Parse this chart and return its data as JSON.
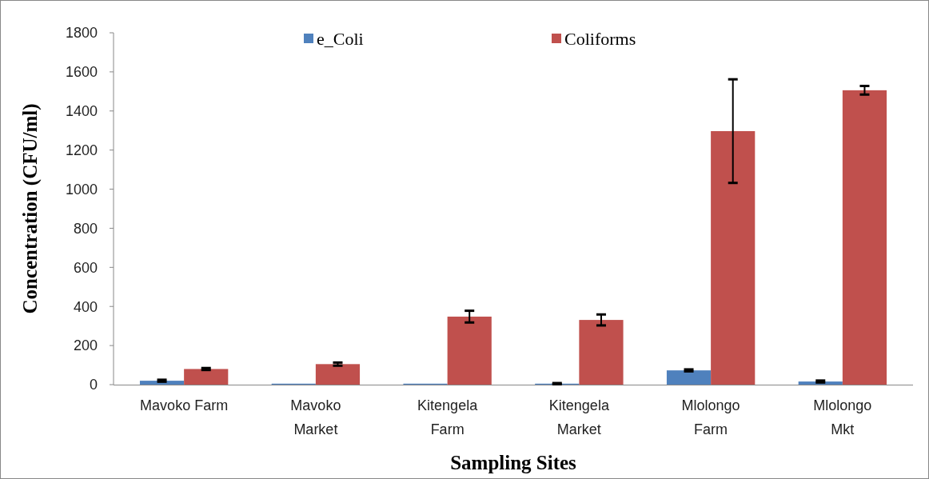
{
  "chart_data": {
    "type": "bar",
    "xlabel": "Sampling Sites",
    "ylabel": "Concentration (CFU/ml)",
    "categories": [
      "Mavoko Farm",
      "Mavoko Market",
      "Kitengela Farm",
      "Kitengela Market",
      "Mlolongo Farm",
      "Mlolongo Mkt"
    ],
    "series": [
      {
        "name": "e_Coli",
        "color": "#4f81bd",
        "values": [
          20,
          5,
          5,
          5,
          73,
          16
        ],
        "errors": [
          5,
          null,
          null,
          3,
          5,
          5
        ]
      },
      {
        "name": "Coliforms",
        "color": "#c0504d",
        "values": [
          80,
          105,
          348,
          331,
          1297,
          1506
        ],
        "errors": [
          5,
          8,
          30,
          28,
          265,
          22
        ]
      }
    ],
    "ylim": [
      0,
      1800
    ],
    "yticks": [
      0,
      200,
      400,
      600,
      800,
      1000,
      1200,
      1400,
      1600,
      1800
    ],
    "grid": false,
    "legend": "top"
  }
}
